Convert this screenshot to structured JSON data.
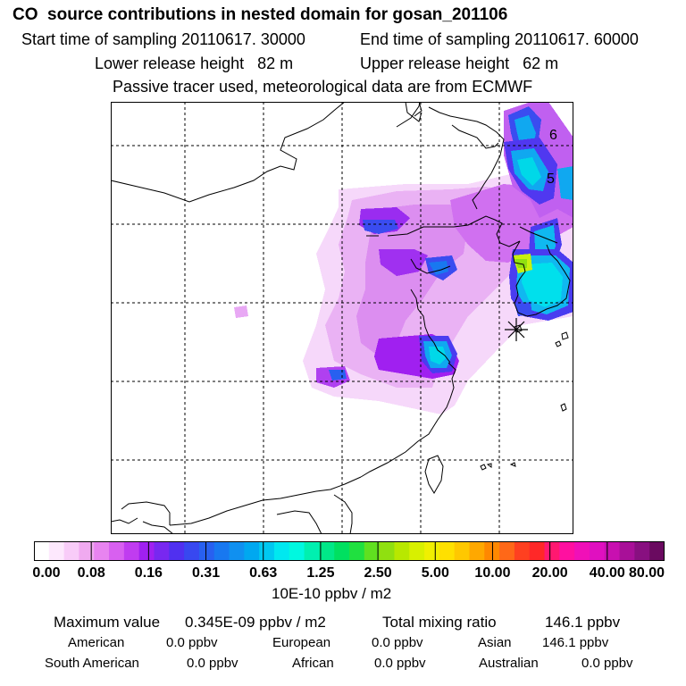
{
  "title": "CO  source contributions in nested domain for gosan_201106",
  "header": {
    "start_time": "Start time of sampling 20110617. 30000",
    "end_time": "End time of sampling 20110617. 60000",
    "lower_height": "Lower release height   82 m",
    "upper_height": "Upper release height   62 m",
    "tracer_note": "Passive tracer used, meteorological data are from ECMWF"
  },
  "map": {
    "contour_labels": [
      "6",
      "5"
    ],
    "receptor_marker": "gosan-receptor",
    "icons": [
      "receptor-star-icon"
    ]
  },
  "colorbar": {
    "tick_labels": [
      "0.00",
      "0.08",
      "0.16",
      "0.31",
      "0.63",
      "1.25",
      "2.50",
      "5.00",
      "10.00",
      "20.00",
      "40.00",
      "80.00"
    ],
    "colors": [
      "#ffffff",
      "#fde8fd",
      "#f8ccf8",
      "#f0aaf0",
      "#e884f0",
      "#d860f0",
      "#c03cf0",
      "#a020f0",
      "#7828f0",
      "#5030f0",
      "#3848f0",
      "#2860f0",
      "#1878f0",
      "#1090f0",
      "#00a8f0",
      "#00c8f0",
      "#00e8f0",
      "#00f8e0",
      "#00f0b0",
      "#00e888",
      "#00e060",
      "#20e040",
      "#60e020",
      "#90e010",
      "#b8e800",
      "#d8f000",
      "#f0f000",
      "#ffe000",
      "#ffc800",
      "#ffa800",
      "#ff8800",
      "#ff6818",
      "#ff4020",
      "#ff2828",
      "#ff1870",
      "#ff10a0",
      "#f010b8",
      "#e010c0",
      "#c810b0",
      "#a81098",
      "#881080",
      "#6a0a60"
    ],
    "units": "10E-10 ppbv / m2"
  },
  "stats": {
    "max_label": "Maximum value",
    "max_value": "0.345E-09 ppbv / m2",
    "total_label": "Total mixing ratio",
    "total_value": "146.1 ppbv",
    "regions": [
      {
        "name": "American",
        "value": "0.0 ppbv"
      },
      {
        "name": "European",
        "value": "0.0 ppbv"
      },
      {
        "name": "Asian",
        "value": "146.1 ppbv"
      },
      {
        "name": "South American",
        "value": "0.0 ppbv"
      },
      {
        "name": "African",
        "value": "0.0 ppbv"
      },
      {
        "name": "Australian",
        "value": "0.0 ppbv"
      }
    ]
  }
}
